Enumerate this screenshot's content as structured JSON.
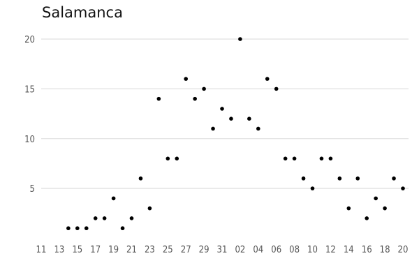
{
  "chart_data": {
    "type": "scatter",
    "title": "Salamanca",
    "xlabel": "",
    "ylabel": "",
    "x_tick_labels": [
      "11",
      "13",
      "15",
      "17",
      "19",
      "21",
      "23",
      "25",
      "27",
      "29",
      "31",
      "02",
      "04",
      "06",
      "08",
      "10",
      "12",
      "14",
      "16",
      "18",
      "20"
    ],
    "y_ticks": [
      5,
      10,
      15,
      20
    ],
    "ylim": [
      0,
      21
    ],
    "grid": "horizontal",
    "x_domain": [
      0,
      40
    ],
    "points": [
      {
        "x": 3,
        "y": 1
      },
      {
        "x": 4,
        "y": 1
      },
      {
        "x": 5,
        "y": 1
      },
      {
        "x": 6,
        "y": 2
      },
      {
        "x": 7,
        "y": 2
      },
      {
        "x": 8,
        "y": 4
      },
      {
        "x": 9,
        "y": 1
      },
      {
        "x": 10,
        "y": 2
      },
      {
        "x": 11,
        "y": 6
      },
      {
        "x": 12,
        "y": 3
      },
      {
        "x": 13,
        "y": 14
      },
      {
        "x": 14,
        "y": 8
      },
      {
        "x": 15,
        "y": 8
      },
      {
        "x": 16,
        "y": 16
      },
      {
        "x": 17,
        "y": 14
      },
      {
        "x": 18,
        "y": 15
      },
      {
        "x": 19,
        "y": 11
      },
      {
        "x": 20,
        "y": 13
      },
      {
        "x": 21,
        "y": 12
      },
      {
        "x": 22,
        "y": 20
      },
      {
        "x": 23,
        "y": 12
      },
      {
        "x": 24,
        "y": 11
      },
      {
        "x": 25,
        "y": 16
      },
      {
        "x": 26,
        "y": 15
      },
      {
        "x": 27,
        "y": 8
      },
      {
        "x": 28,
        "y": 8
      },
      {
        "x": 29,
        "y": 6
      },
      {
        "x": 30,
        "y": 5
      },
      {
        "x": 31,
        "y": 8
      },
      {
        "x": 32,
        "y": 8
      },
      {
        "x": 33,
        "y": 6
      },
      {
        "x": 34,
        "y": 3
      },
      {
        "x": 35,
        "y": 6
      },
      {
        "x": 36,
        "y": 2
      },
      {
        "x": 37,
        "y": 4
      },
      {
        "x": 38,
        "y": 3
      },
      {
        "x": 39,
        "y": 6
      },
      {
        "x": 40,
        "y": 5
      }
    ]
  }
}
